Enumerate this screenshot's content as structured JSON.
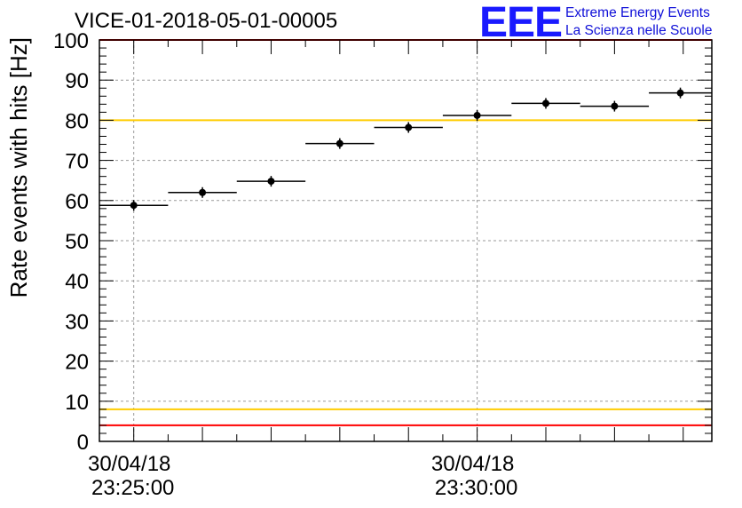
{
  "header": {
    "title": "VICE-01-2018-05-01-00005"
  },
  "logo": {
    "mark": "EEE",
    "line1": "Extreme Energy Events",
    "line2": "La Scienza nelle Scuole"
  },
  "chart_data": {
    "type": "scatter",
    "ylabel": "Rate events with hits [Hz]",
    "xlabel": "",
    "ylim": [
      0,
      100
    ],
    "y_ticks": [
      0,
      10,
      20,
      30,
      40,
      50,
      60,
      70,
      80,
      90,
      100
    ],
    "xlim": [
      "2018-04-30 23:24:30",
      "2018-04-30 23:33:25"
    ],
    "x_tick_labels": [
      {
        "date": "30/04/18",
        "time": "23:25:00"
      },
      {
        "date": "30/04/18",
        "time": "23:30:00"
      }
    ],
    "grid": true,
    "reference_lines": [
      {
        "value": 100,
        "color": "#ff0000"
      },
      {
        "value": 80,
        "color": "#ffcc00"
      },
      {
        "value": 8,
        "color": "#ffcc00"
      },
      {
        "value": 4,
        "color": "#ff0000"
      }
    ],
    "series": [
      {
        "marker_color": "#000000",
        "points": [
          {
            "t_start": "23:24:30",
            "t_end": "23:25:30",
            "y": 58.8
          },
          {
            "t_start": "23:25:30",
            "t_end": "23:26:30",
            "y": 62.0
          },
          {
            "t_start": "23:26:30",
            "t_end": "23:27:30",
            "y": 64.8
          },
          {
            "t_start": "23:27:30",
            "t_end": "23:28:30",
            "y": 74.2
          },
          {
            "t_start": "23:28:30",
            "t_end": "23:29:30",
            "y": 78.2
          },
          {
            "t_start": "23:29:30",
            "t_end": "23:30:30",
            "y": 81.2
          },
          {
            "t_start": "23:30:30",
            "t_end": "23:31:30",
            "y": 84.2
          },
          {
            "t_start": "23:31:30",
            "t_end": "23:32:30",
            "y": 83.5
          },
          {
            "t_start": "23:32:30",
            "t_end": "23:33:25",
            "y": 86.8
          }
        ]
      }
    ]
  }
}
